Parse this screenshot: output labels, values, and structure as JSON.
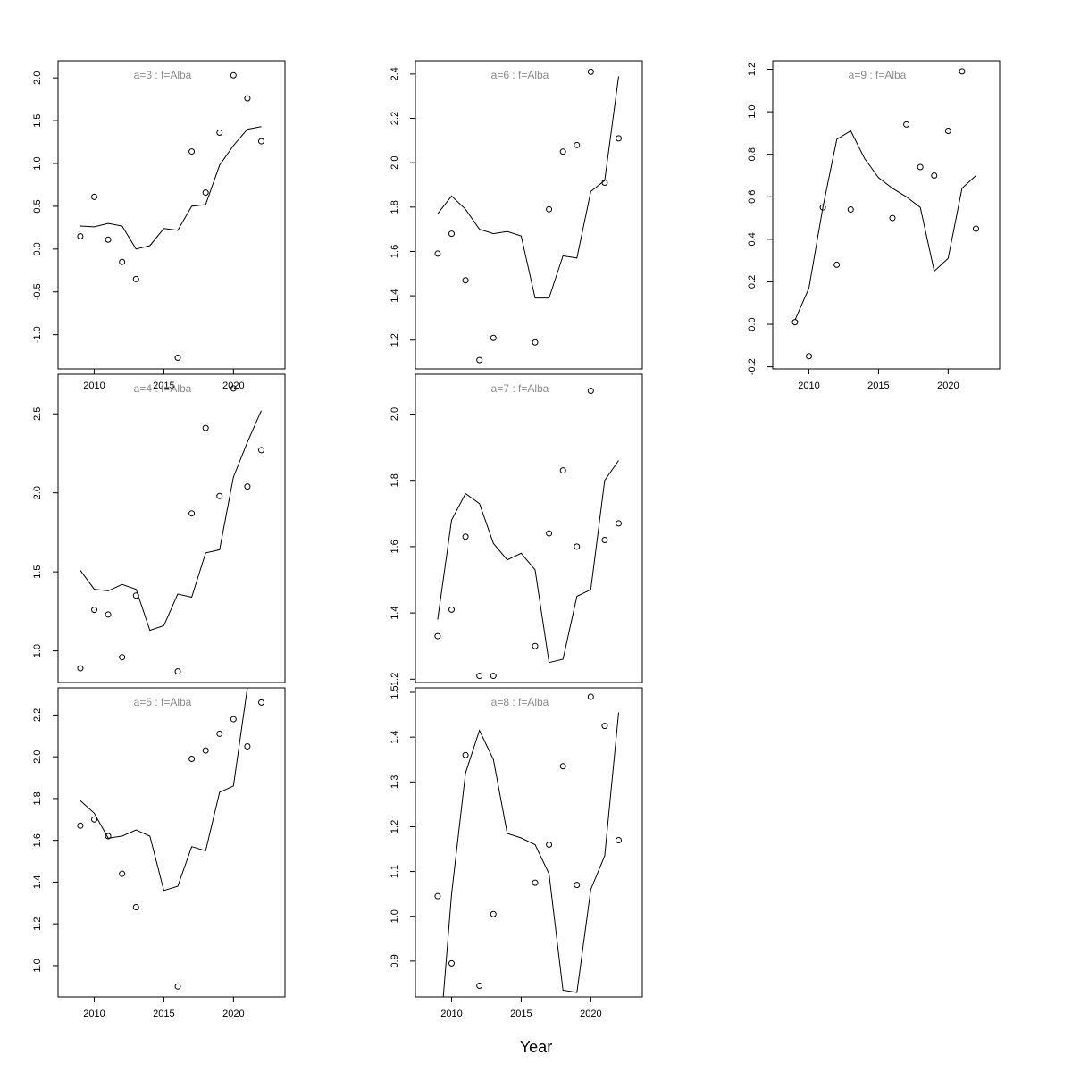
{
  "xlabel": "Year",
  "chart_data": [
    {
      "type": "scatter",
      "title": "a=3  :  f=Alba",
      "xlim": [
        2007.4,
        2023.7
      ],
      "ylim": [
        -1.4,
        2.2
      ],
      "yticks": [
        -1.0,
        -0.5,
        0.0,
        0.5,
        1.0,
        1.5,
        2.0
      ],
      "ytick_labels": [
        "-1.0",
        "-0.5",
        "0.0",
        "0.5",
        "1.0",
        "1.5",
        "2.0"
      ],
      "xticks": [
        2010,
        2015,
        2020
      ],
      "xtick_labels": [
        "2010",
        "2015",
        "2020"
      ],
      "show_xticks": true,
      "series": [
        {
          "kind": "points",
          "x": [
            2009,
            2010,
            2011,
            2012,
            2013,
            2016,
            2017,
            2018,
            2019,
            2020,
            2021,
            2022
          ],
          "y": [
            0.15,
            0.61,
            0.11,
            -0.15,
            -0.35,
            -1.27,
            1.14,
            0.66,
            1.36,
            2.03,
            1.76,
            1.26
          ]
        },
        {
          "kind": "line",
          "x": [
            2009,
            2010,
            2011,
            2012,
            2013,
            2014,
            2015,
            2016,
            2017,
            2018,
            2019,
            2020,
            2021,
            2022
          ],
          "y": [
            0.27,
            0.26,
            0.3,
            0.27,
            0.0,
            0.04,
            0.24,
            0.22,
            0.5,
            0.52,
            0.98,
            1.21,
            1.4,
            1.43
          ]
        }
      ]
    },
    {
      "type": "scatter",
      "title": "a=4  :  f=Alba",
      "xlim": [
        2007.4,
        2023.7
      ],
      "ylim": [
        0.8,
        2.75
      ],
      "yticks": [
        1.0,
        1.5,
        2.0,
        2.5
      ],
      "ytick_labels": [
        "1.0",
        "1.5",
        "2.0",
        "2.5"
      ],
      "xticks": [
        2010,
        2015,
        2020
      ],
      "xtick_labels": [
        "2010",
        "2015",
        "2020"
      ],
      "show_xticks": false,
      "series": [
        {
          "kind": "points",
          "x": [
            2009,
            2010,
            2011,
            2012,
            2013,
            2016,
            2017,
            2018,
            2019,
            2020,
            2021,
            2022
          ],
          "y": [
            0.89,
            1.26,
            1.23,
            0.96,
            1.35,
            0.87,
            1.87,
            2.41,
            1.98,
            2.66,
            2.04,
            2.27
          ]
        },
        {
          "kind": "line",
          "x": [
            2009,
            2010,
            2011,
            2012,
            2013,
            2014,
            2015,
            2016,
            2017,
            2018,
            2019,
            2020,
            2021,
            2022
          ],
          "y": [
            1.51,
            1.39,
            1.38,
            1.42,
            1.39,
            1.13,
            1.16,
            1.36,
            1.34,
            1.62,
            1.64,
            2.1,
            2.32,
            2.52
          ]
        }
      ]
    },
    {
      "type": "scatter",
      "title": "a=5  :  f=Alba",
      "xlim": [
        2007.4,
        2023.7
      ],
      "ylim": [
        0.85,
        2.33
      ],
      "yticks": [
        1.0,
        1.2,
        1.4,
        1.6,
        1.8,
        2.0,
        2.2
      ],
      "ytick_labels": [
        "1.0",
        "1.2",
        "1.4",
        "1.6",
        "1.8",
        "2.0",
        "2.2"
      ],
      "xticks": [
        2010,
        2015,
        2020
      ],
      "xtick_labels": [
        "2010",
        "2015",
        "2020"
      ],
      "show_xticks": true,
      "series": [
        {
          "kind": "points",
          "x": [
            2009,
            2010,
            2011,
            2012,
            2013,
            2016,
            2017,
            2018,
            2019,
            2020,
            2021,
            2022
          ],
          "y": [
            1.67,
            1.7,
            1.62,
            1.44,
            1.28,
            0.9,
            1.99,
            2.03,
            2.11,
            2.18,
            2.05,
            2.26
          ]
        },
        {
          "kind": "line",
          "x": [
            2009,
            2010,
            2011,
            2012,
            2013,
            2014,
            2015,
            2016,
            2017,
            2018,
            2019,
            2020,
            2021,
            2022
          ],
          "y": [
            1.79,
            1.73,
            1.61,
            1.62,
            1.65,
            1.62,
            1.36,
            1.38,
            1.57,
            1.55,
            1.83,
            1.86,
            2.33,
            2.33
          ]
        }
      ]
    },
    {
      "type": "scatter",
      "title": "a=6  :  f=Alba",
      "xlim": [
        2007.4,
        2023.7
      ],
      "ylim": [
        1.07,
        2.46
      ],
      "yticks": [
        1.2,
        1.4,
        1.6,
        1.8,
        2.0,
        2.2,
        2.4
      ],
      "ytick_labels": [
        "1.2",
        "1.4",
        "1.6",
        "1.8",
        "2.0",
        "2.2",
        "2.4"
      ],
      "xticks": [
        2010,
        2015,
        2020
      ],
      "xtick_labels": [
        "2010",
        "2015",
        "2020"
      ],
      "show_xticks": false,
      "series": [
        {
          "kind": "points",
          "x": [
            2009,
            2010,
            2011,
            2012,
            2013,
            2016,
            2017,
            2018,
            2019,
            2020,
            2021,
            2022
          ],
          "y": [
            1.59,
            1.68,
            1.47,
            1.11,
            1.21,
            1.19,
            1.79,
            2.05,
            2.08,
            2.41,
            1.91,
            2.11
          ]
        },
        {
          "kind": "line",
          "x": [
            2009,
            2010,
            2011,
            2012,
            2013,
            2014,
            2015,
            2016,
            2017,
            2018,
            2019,
            2020,
            2021,
            2022
          ],
          "y": [
            1.77,
            1.85,
            1.79,
            1.7,
            1.68,
            1.69,
            1.67,
            1.39,
            1.39,
            1.58,
            1.57,
            1.87,
            1.92,
            2.39
          ]
        }
      ]
    },
    {
      "type": "scatter",
      "title": "a=7  :  f=Alba",
      "xlim": [
        2007.4,
        2023.7
      ],
      "ylim": [
        1.19,
        2.12
      ],
      "yticks": [
        1.2,
        1.4,
        1.6,
        1.8,
        2.0
      ],
      "ytick_labels": [
        "1.2",
        "1.4",
        "1.6",
        "1.8",
        "2.0"
      ],
      "xticks": [
        2010,
        2015,
        2020
      ],
      "xtick_labels": [
        "2010",
        "2015",
        "2020"
      ],
      "show_xticks": false,
      "series": [
        {
          "kind": "points",
          "x": [
            2009,
            2010,
            2011,
            2012,
            2013,
            2016,
            2017,
            2018,
            2019,
            2020,
            2021,
            2022
          ],
          "y": [
            1.33,
            1.41,
            1.63,
            1.21,
            1.21,
            1.3,
            1.64,
            1.83,
            1.6,
            2.07,
            1.62,
            1.67
          ]
        },
        {
          "kind": "line",
          "x": [
            2009,
            2010,
            2011,
            2012,
            2013,
            2014,
            2015,
            2016,
            2017,
            2018,
            2019,
            2020,
            2021,
            2022
          ],
          "y": [
            1.38,
            1.68,
            1.76,
            1.73,
            1.61,
            1.56,
            1.58,
            1.53,
            1.25,
            1.26,
            1.45,
            1.47,
            1.8,
            1.86
          ]
        }
      ]
    },
    {
      "type": "scatter",
      "title": "a=8  :  f=Alba",
      "xlim": [
        2007.4,
        2023.7
      ],
      "ylim": [
        0.82,
        1.51
      ],
      "yticks": [
        0.9,
        1.0,
        1.1,
        1.2,
        1.3,
        1.4,
        1.5
      ],
      "ytick_labels": [
        "0.9",
        "1.0",
        "1.1",
        "1.2",
        "1.3",
        "1.4",
        "1.5"
      ],
      "xticks": [
        2010,
        2015,
        2020
      ],
      "xtick_labels": [
        "2010",
        "2015",
        "2020"
      ],
      "show_xticks": true,
      "series": [
        {
          "kind": "points",
          "x": [
            2009,
            2010,
            2011,
            2012,
            2013,
            2016,
            2017,
            2018,
            2019,
            2020,
            2021,
            2022
          ],
          "y": [
            1.045,
            0.895,
            1.36,
            0.845,
            1.005,
            1.075,
            1.16,
            1.335,
            1.07,
            1.49,
            1.425,
            1.17
          ]
        },
        {
          "kind": "line",
          "x": [
            2009.4,
            2010,
            2011,
            2012,
            2013,
            2014,
            2015,
            2016,
            2017,
            2018,
            2019,
            2020,
            2021,
            2022
          ],
          "y": [
            0.82,
            1.05,
            1.32,
            1.415,
            1.35,
            1.185,
            1.175,
            1.16,
            1.095,
            0.835,
            0.83,
            1.06,
            1.135,
            1.455
          ]
        }
      ]
    },
    {
      "type": "scatter",
      "title": "a=9  :  f=Alba",
      "xlim": [
        2007.4,
        2023.7
      ],
      "ylim": [
        -0.21,
        1.24
      ],
      "yticks": [
        -0.2,
        0.0,
        0.2,
        0.4,
        0.6,
        0.8,
        1.0,
        1.2
      ],
      "ytick_labels": [
        "-0.2",
        "0.0",
        "0.2",
        "0.4",
        "0.6",
        "0.8",
        "1.0",
        "1.2"
      ],
      "xticks": [
        2010,
        2015,
        2020
      ],
      "xtick_labels": [
        "2010",
        "2015",
        "2020"
      ],
      "show_xticks": true,
      "series": [
        {
          "kind": "points",
          "x": [
            2009,
            2010,
            2011,
            2012,
            2013,
            2016,
            2017,
            2018,
            2019,
            2020,
            2021,
            2022
          ],
          "y": [
            0.01,
            -0.15,
            0.55,
            0.28,
            0.54,
            0.5,
            0.94,
            0.74,
            0.7,
            0.91,
            1.19,
            0.45
          ]
        },
        {
          "kind": "line",
          "x": [
            2009,
            2010,
            2011,
            2012,
            2013,
            2014,
            2015,
            2016,
            2017,
            2018,
            2019,
            2020,
            2021,
            2022
          ],
          "y": [
            0.02,
            0.17,
            0.55,
            0.87,
            0.91,
            0.78,
            0.69,
            0.64,
            0.6,
            0.55,
            0.25,
            0.31,
            0.64,
            0.7
          ]
        }
      ]
    }
  ]
}
